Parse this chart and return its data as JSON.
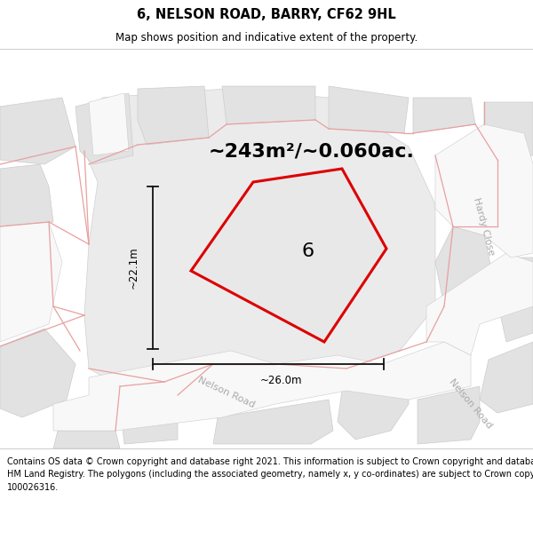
{
  "title": "6, NELSON ROAD, BARRY, CF62 9HL",
  "subtitle": "Map shows position and indicative extent of the property.",
  "footer": "Contains OS data © Crown copyright and database right 2021. This information is subject to Crown copyright and database rights 2023 and is reproduced with the permission of\nHM Land Registry. The polygons (including the associated geometry, namely x, y co-ordinates) are subject to Crown copyright and database rights 2023 Ordnance Survey\n100026316.",
  "bg_color": "#f0f0f0",
  "area_label": "~243m²/~0.060ac.",
  "plot_number": "6",
  "width_label": "~26.0m",
  "height_label": "~22.1m",
  "road_label_nelson1": "Nelson Road",
  "road_label_nelson2": "Nelson Road",
  "road_label_hardy": "Hardy Close",
  "plot_outline_color": "#dd0000",
  "plot_fill_color": "#e8e8e8",
  "building_fill": "#e2e2e2",
  "building_edge": "#cccccc",
  "road_fill": "#f8f8f8",
  "pink_line_color": "#e8a0a0",
  "dim_line_color": "#111111",
  "gray_line_color": "#bbbbbb",
  "title_fontsize": 10.5,
  "subtitle_fontsize": 8.5,
  "footer_fontsize": 7,
  "area_fontsize": 16,
  "number_fontsize": 16,
  "road_fontsize": 8,
  "dim_fontsize": 8.5
}
